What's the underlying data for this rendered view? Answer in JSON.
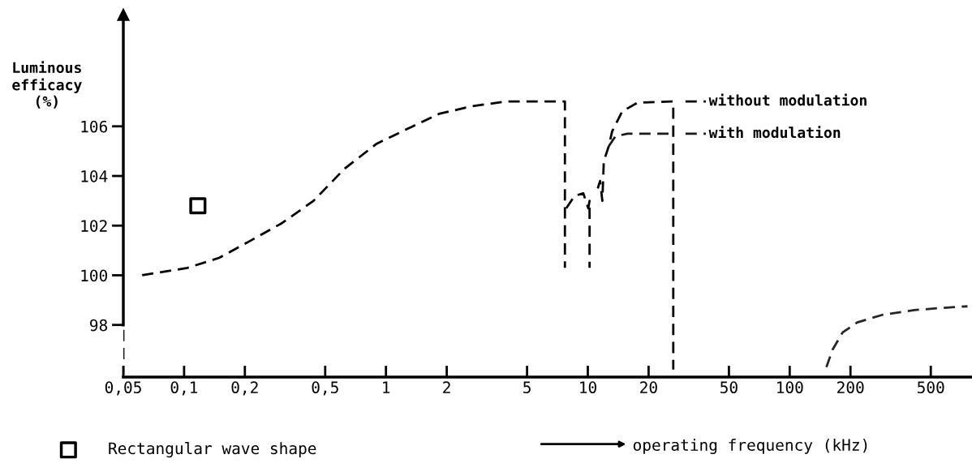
{
  "chart_data": {
    "type": "line",
    "ylabel": "Luminous\nefficacy\n(%)",
    "xlabel": "operating frequency (kHz)",
    "log": "x",
    "xlim": [
      0.05,
      800
    ],
    "ylim": [
      95.9,
      110.5
    ],
    "xticks": [
      {
        "value": 0.05,
        "label": "0,05"
      },
      {
        "value": 0.1,
        "label": "0,1"
      },
      {
        "value": 0.2,
        "label": "0,2"
      },
      {
        "value": 0.5,
        "label": "0,5"
      },
      1,
      2,
      5,
      10,
      20,
      50,
      100,
      200,
      500
    ],
    "yticks": [
      98,
      100,
      102,
      104,
      106
    ],
    "grid": false,
    "legend": "bottom left",
    "line_style": "dashed",
    "series": [
      {
        "name": "without modulation",
        "color": "#000000",
        "x": [
          0.062,
          0.104,
          0.149,
          0.214,
          0.305,
          0.438,
          0.625,
          0.9,
          1.28,
          1.83,
          2.63,
          3.93,
          7.7,
          7.7,
          null,
          7.82,
          8.6,
          9.5,
          10.05,
          10.2,
          10.2,
          null,
          11.2,
          11.5,
          11.8,
          12.0,
          12.7,
          13.2,
          14.8,
          17.6,
          26.0,
          26.5,
          26.5
        ],
        "values": [
          100.0,
          100.3,
          100.7,
          101.4,
          102.1,
          103.0,
          104.3,
          105.3,
          105.9,
          106.5,
          106.8,
          107.0,
          107.0,
          100.3,
          null,
          102.7,
          103.2,
          103.3,
          102.7,
          103.0,
          100.3,
          null,
          103.5,
          103.8,
          103.0,
          104.6,
          105.2,
          105.8,
          106.6,
          106.95,
          107.0,
          107.0,
          96.2
        ]
      },
      {
        "name": "with modulation",
        "color": "#1a1a1a",
        "x": [
          12.7,
          13.7,
          15.7,
          21.0,
          26.5
        ],
        "values": [
          105.2,
          105.6,
          105.7,
          105.7,
          105.7
        ]
      },
      {
        "color": "#0d0d0d",
        "x": [
          0.05,
          0.05
        ],
        "values": [
          97.8,
          96.0
        ]
      },
      {
        "color": "#262626",
        "x": [
          152,
          163,
          183,
          216,
          286,
          415,
          603,
          760
        ],
        "values": [
          96.3,
          97.0,
          97.7,
          98.1,
          98.4,
          98.6,
          98.7,
          98.75
        ]
      },
      {
        "name": "Rectangular wave shape",
        "type": "scatter",
        "marker": "square",
        "color": "#000000",
        "x": [
          0.117
        ],
        "values": [
          102.8
        ]
      }
    ]
  }
}
